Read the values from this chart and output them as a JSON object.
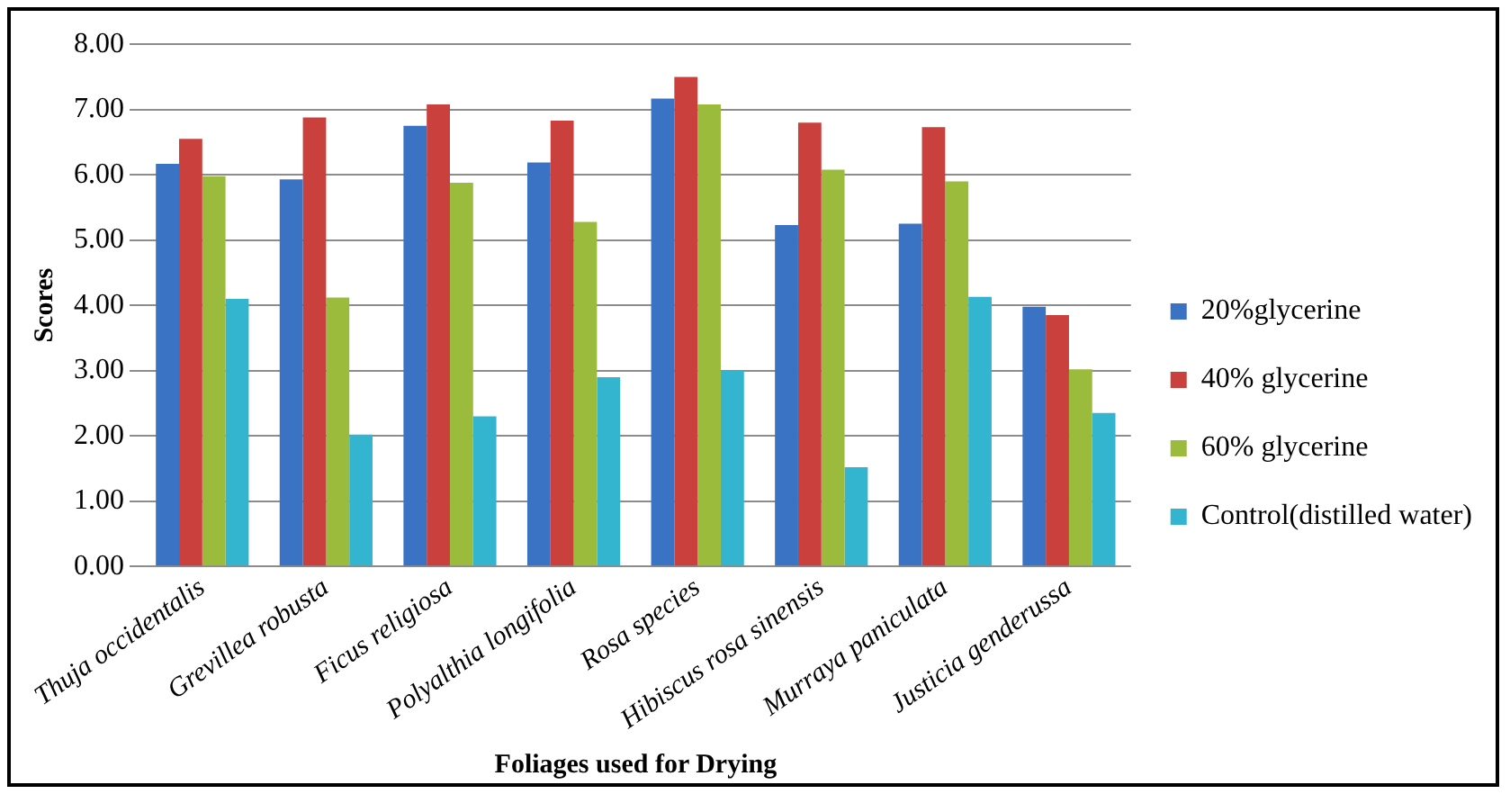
{
  "chart_data": {
    "type": "bar",
    "xlabel": "Foliages used for Drying",
    "ylabel": "Scores",
    "categories": [
      "Thuja occidentalis",
      "Grevillea robusta",
      "Ficus religiosa",
      "Polyalthia longifolia",
      "Rosa species",
      "Hibiscus rosa sinensis",
      "Murraya paniculata",
      "Justicia genderussa"
    ],
    "series": [
      {
        "name": "20%glycerine",
        "color": "#3a72c4",
        "values": [
          6.17,
          5.93,
          6.75,
          6.19,
          7.17,
          5.23,
          5.25,
          3.98
        ]
      },
      {
        "name": "40% glycerine",
        "color": "#c9403c",
        "values": [
          6.55,
          6.88,
          7.08,
          6.83,
          7.5,
          6.8,
          6.73,
          3.85
        ]
      },
      {
        "name": "60% glycerine",
        "color": "#9bbb3c",
        "values": [
          5.98,
          4.12,
          5.88,
          5.28,
          7.08,
          6.08,
          5.9,
          3.02
        ]
      },
      {
        "name": "Control(distilled water)",
        "color": "#33b5cf",
        "values": [
          4.1,
          2.02,
          2.3,
          2.9,
          3.0,
          1.52,
          4.13,
          2.35
        ]
      }
    ],
    "ylim": [
      0,
      8
    ],
    "yticks": [
      {
        "value": 0,
        "label": "0.00"
      },
      {
        "value": 1,
        "label": "1.00"
      },
      {
        "value": 2,
        "label": "2.00"
      },
      {
        "value": 3,
        "label": "3.00"
      },
      {
        "value": 4,
        "label": "4.00"
      },
      {
        "value": 5,
        "label": "5.00"
      },
      {
        "value": 6,
        "label": "6.00"
      },
      {
        "value": 7,
        "label": "7.00"
      },
      {
        "value": 8,
        "label": "8.00"
      }
    ],
    "grid": "y",
    "legend": "right"
  }
}
